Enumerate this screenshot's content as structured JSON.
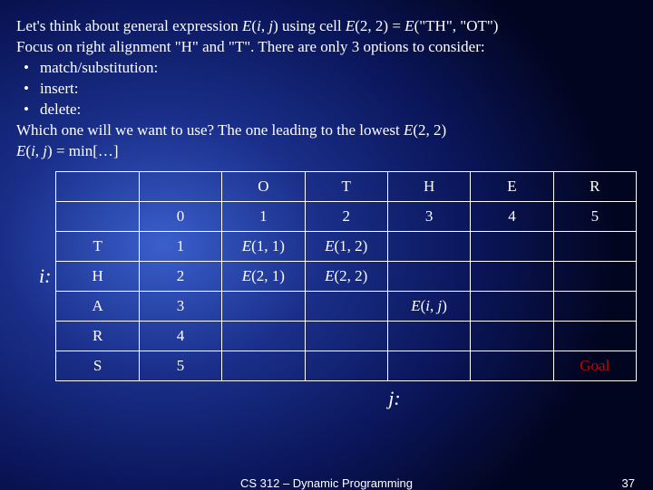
{
  "slide": {
    "line1_a": "Let's think about general expression ",
    "line1_b": "E",
    "line1_c": "(",
    "line1_d": "i",
    "line1_e": ", ",
    "line1_f": "j",
    "line1_g": ") using cell ",
    "line1_h": "E",
    "line1_i": "(2, 2) = ",
    "line1_j": "E",
    "line1_k": "(\"TH\", \"OT\")",
    "line2": "Focus on right alignment \"H\" and \"T\". There are only 3 options to consider:",
    "bullet1": "match/substitution:",
    "bullet2": "insert:",
    "bullet3": "delete:",
    "line3_a": "Which one will we want to use?  The one leading to the lowest ",
    "line3_b": "E",
    "line3_c": "(2, 2)",
    "line4_a": "E",
    "line4_b": "(",
    "line4_c": "i",
    "line4_d": ", ",
    "line4_e": "j",
    "line4_f": ") = min[…]"
  },
  "axis_i": "i:",
  "axis_j": "j:",
  "table": {
    "header_cols": [
      "O",
      "T",
      "H",
      "E",
      "R"
    ],
    "index_row": [
      "0",
      "1",
      "2",
      "3",
      "4",
      "5"
    ],
    "rows": [
      {
        "label": "T",
        "idx": "1",
        "cells": [
          "E(1, 1)",
          "E(1, 2)",
          "",
          "",
          ""
        ]
      },
      {
        "label": "H",
        "idx": "2",
        "cells": [
          "E(2, 1)",
          "E(2, 2)",
          "",
          "",
          ""
        ]
      },
      {
        "label": "A",
        "idx": "3",
        "cells": [
          "",
          "",
          "E(i, j)",
          "",
          ""
        ]
      },
      {
        "label": "R",
        "idx": "4",
        "cells": [
          "",
          "",
          "",
          "",
          ""
        ]
      },
      {
        "label": "S",
        "idx": "5",
        "cells": [
          "",
          "",
          "",
          "",
          "Goal"
        ]
      }
    ]
  },
  "footer": {
    "course": "CS 312 – Dynamic Programming",
    "page": "37"
  },
  "styling": {
    "goal_color": "#cc0000",
    "text_color": "#ffffff",
    "border_color": "#ffffff",
    "bg_gradient_inner": "#3a5fcc",
    "bg_gradient_outer": "#020520",
    "font": "Times New Roman",
    "slide_w": 720,
    "slide_h": 540
  }
}
